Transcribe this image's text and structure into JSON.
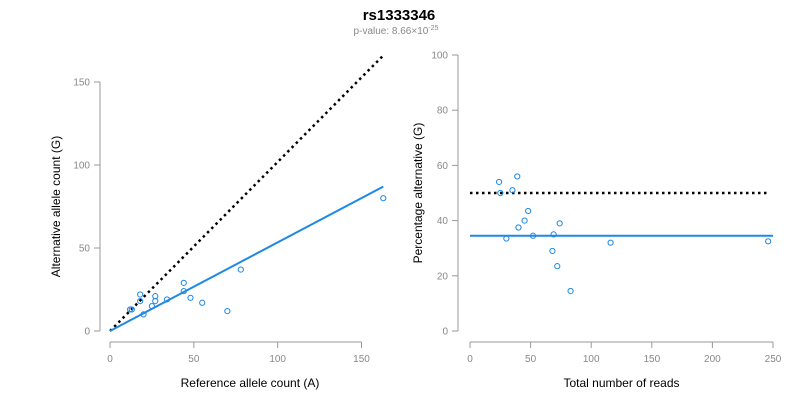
{
  "title": "rs1333346",
  "subtitle": {
    "prefix": "p-value: 8.66×10",
    "exponent": "-25"
  },
  "colors": {
    "points": "#1e88e5",
    "fit_line": "#1e88e5",
    "reference_line": "#000000",
    "axis": "#999999",
    "tick_text": "#888888"
  },
  "chart_data": [
    {
      "type": "scatter",
      "xlabel": "Reference allele count (A)",
      "ylabel": "Alternative allele count (G)",
      "xlim": [
        0,
        167
      ],
      "ylim": [
        0,
        150
      ],
      "x_ticks": [
        0,
        50,
        100,
        150
      ],
      "y_ticks": [
        0,
        50,
        100,
        150
      ],
      "grid": false,
      "points": [
        {
          "x": 12,
          "y": 13
        },
        {
          "x": 13,
          "y": 13
        },
        {
          "x": 18,
          "y": 18
        },
        {
          "x": 18,
          "y": 22
        },
        {
          "x": 20,
          "y": 10
        },
        {
          "x": 25,
          "y": 15
        },
        {
          "x": 27,
          "y": 18
        },
        {
          "x": 27,
          "y": 21
        },
        {
          "x": 34,
          "y": 19
        },
        {
          "x": 44,
          "y": 24
        },
        {
          "x": 44,
          "y": 29
        },
        {
          "x": 48,
          "y": 20
        },
        {
          "x": 55,
          "y": 17
        },
        {
          "x": 70,
          "y": 12
        },
        {
          "x": 78,
          "y": 37
        },
        {
          "x": 163,
          "y": 80
        }
      ],
      "fit_line": {
        "x": [
          0,
          163
        ],
        "y": [
          0,
          87
        ]
      },
      "reference_line": {
        "x": [
          0,
          163
        ],
        "y": [
          0,
          166
        ]
      }
    },
    {
      "type": "scatter",
      "xlabel": "Total number of reads",
      "ylabel": "Percentage alternative (G)",
      "xlim": [
        0,
        250
      ],
      "ylim": [
        0,
        100
      ],
      "x_ticks": [
        0,
        50,
        100,
        150,
        200,
        250
      ],
      "y_ticks": [
        0,
        20,
        40,
        60,
        80,
        100
      ],
      "grid": false,
      "points": [
        {
          "x": 24,
          "y": 54
        },
        {
          "x": 25,
          "y": 50
        },
        {
          "x": 30,
          "y": 33.5
        },
        {
          "x": 35,
          "y": 51
        },
        {
          "x": 39,
          "y": 56
        },
        {
          "x": 40,
          "y": 37.5
        },
        {
          "x": 45,
          "y": 40
        },
        {
          "x": 48,
          "y": 43.5
        },
        {
          "x": 52,
          "y": 34.5
        },
        {
          "x": 68,
          "y": 29
        },
        {
          "x": 69,
          "y": 35
        },
        {
          "x": 72,
          "y": 23.5
        },
        {
          "x": 74,
          "y": 39
        },
        {
          "x": 83,
          "y": 14.5
        },
        {
          "x": 116,
          "y": 32
        },
        {
          "x": 246,
          "y": 32.5
        }
      ],
      "fit_line": {
        "x": [
          0,
          250
        ],
        "y": [
          34.5,
          34.5
        ]
      },
      "reference_line": {
        "x": [
          0,
          245
        ],
        "y": [
          50,
          50
        ]
      }
    }
  ]
}
